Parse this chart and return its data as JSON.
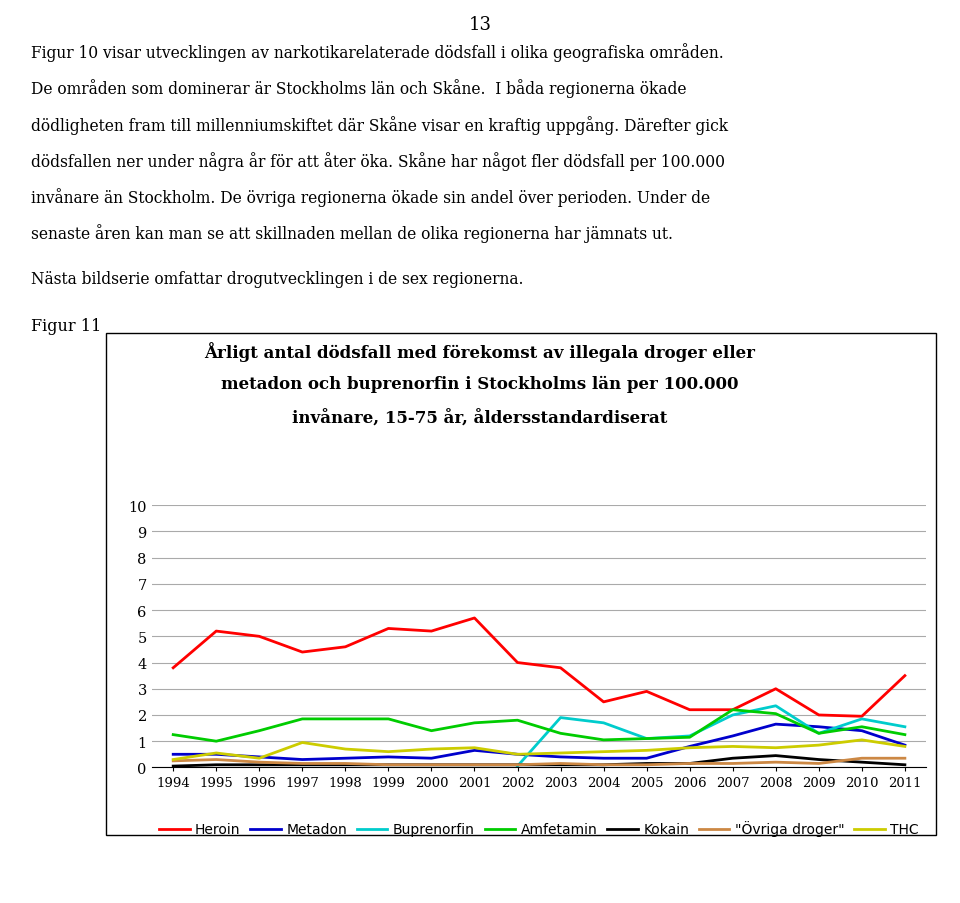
{
  "title_line1": "Årligt antal dödsfall med förekomst av illegala droger eller",
  "title_line2": "metadon och buprenorfin i Stockholms län per 100.000",
  "title_line3": "invånare, 15-75 år, åldersstandardiserat",
  "page_number": "13",
  "text_lines": [
    "Figur 10 visar utvecklingen av narkotikarelaterade dödsfall i olika geografiska områden.",
    "De områden som dominerar är Stockholms län och Skåne.  I båda regionerna ökade",
    "dödligheten fram till millenniumskiftet där Skåne visar en kraftig uppgång. Därefter gick",
    "dödsfallen ner under några år för att åter öka. Skåne har något fler dödsfall per 100.000",
    "invånare än Stockholm. De övriga regionerna ökade sin andel över perioden. Under de",
    "senaste åren kan man se att skillnaden mellan de olika regionerna har jämnats ut."
  ],
  "figur11_label": "Figur 11",
  "next_text": "Nästa bildserie omfattar drogutvecklingen i de sex regionerna.",
  "years": [
    1994,
    1995,
    1996,
    1997,
    1998,
    1999,
    2000,
    2001,
    2002,
    2003,
    2004,
    2005,
    2006,
    2007,
    2008,
    2009,
    2010,
    2011
  ],
  "series": {
    "Heroin": {
      "color": "#FF0000",
      "values": [
        3.8,
        5.2,
        5.0,
        4.4,
        4.6,
        5.3,
        5.2,
        5.7,
        4.0,
        3.8,
        2.5,
        2.9,
        2.2,
        2.2,
        3.0,
        2.0,
        1.95,
        3.5
      ]
    },
    "Metadon": {
      "color": "#0000CC",
      "values": [
        0.5,
        0.5,
        0.4,
        0.3,
        0.35,
        0.4,
        0.35,
        0.65,
        0.5,
        0.4,
        0.35,
        0.35,
        0.8,
        1.2,
        1.65,
        1.55,
        1.4,
        0.85
      ]
    },
    "Buprenorfin": {
      "color": "#00CCCC",
      "values": [
        null,
        null,
        null,
        null,
        null,
        null,
        null,
        null,
        0.05,
        1.9,
        1.7,
        1.1,
        1.2,
        2.0,
        2.35,
        1.3,
        1.85,
        1.55
      ]
    },
    "Amfetamin": {
      "color": "#00CC00",
      "values": [
        1.25,
        1.0,
        1.4,
        1.85,
        1.85,
        1.85,
        1.4,
        1.7,
        1.8,
        1.3,
        1.05,
        1.1,
        1.15,
        2.2,
        2.05,
        1.3,
        1.55,
        1.25
      ]
    },
    "Kokain": {
      "color": "#000000",
      "values": [
        0.05,
        0.1,
        0.1,
        0.1,
        0.1,
        0.1,
        0.1,
        0.1,
        0.1,
        0.1,
        0.1,
        0.15,
        0.15,
        0.35,
        0.45,
        0.3,
        0.2,
        0.1
      ]
    },
    "Övriga droger": {
      "color": "#CC8844",
      "values": [
        0.25,
        0.3,
        0.2,
        0.15,
        0.15,
        0.1,
        0.1,
        0.1,
        0.1,
        0.15,
        0.1,
        0.1,
        0.15,
        0.15,
        0.2,
        0.15,
        0.35,
        0.35
      ]
    },
    "THC": {
      "color": "#CCCC00",
      "values": [
        0.3,
        0.55,
        0.35,
        0.95,
        0.7,
        0.6,
        0.7,
        0.75,
        0.5,
        0.55,
        0.6,
        0.65,
        0.75,
        0.8,
        0.75,
        0.85,
        1.05,
        0.8
      ]
    }
  },
  "ylim": [
    0,
    10
  ],
  "yticks": [
    0,
    1,
    2,
    3,
    4,
    5,
    6,
    7,
    8,
    9,
    10
  ],
  "legend_labels": [
    "Heroin",
    "Metadon",
    "Buprenorfin",
    "Amfetamin",
    "Kokain",
    "\"Övriga droger\"",
    "THC"
  ],
  "background_color": "#FFFFFF"
}
